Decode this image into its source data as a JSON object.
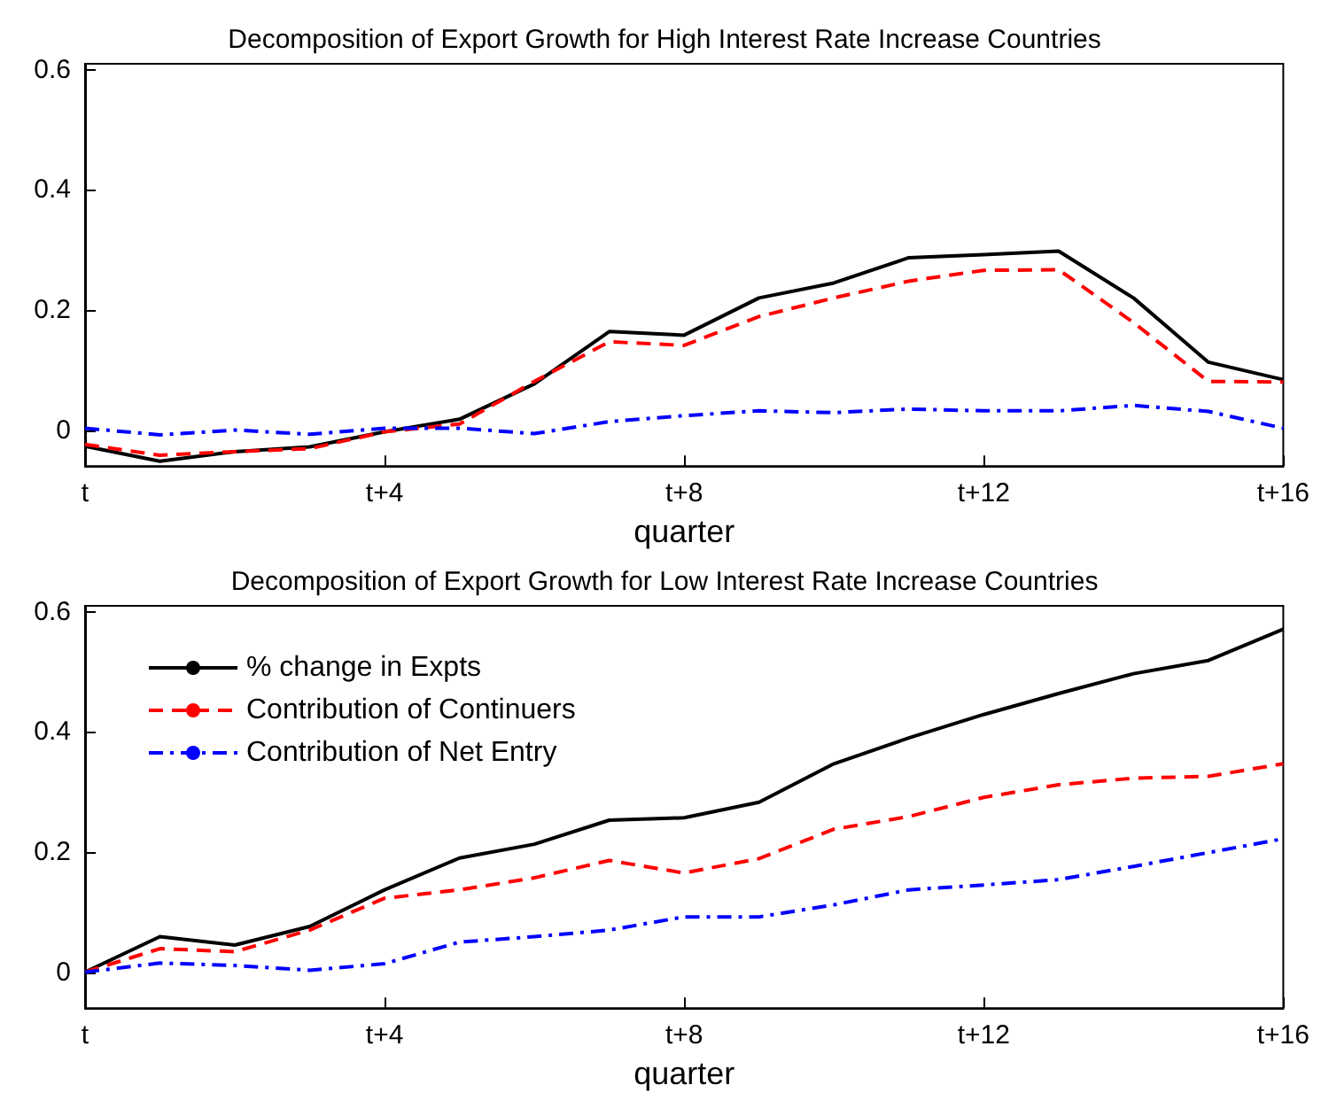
{
  "chart_data": [
    {
      "type": "line",
      "title": "Decomposition of Export Growth for High Interest Rate Increase Countries",
      "xlabel": "quarter",
      "categories": [
        "t",
        null,
        null,
        null,
        "t+4",
        null,
        null,
        null,
        "t+8",
        null,
        null,
        null,
        "t+12",
        null,
        null,
        null,
        "t+16"
      ],
      "ylim": [
        -0.06,
        0.61
      ],
      "yticks": [
        0,
        0.2,
        0.4,
        0.6
      ],
      "grid": false,
      "legend": false,
      "marker": "none",
      "series": [
        {
          "color": "#000000",
          "line_style": "solid",
          "values": [
            -0.027,
            -0.052,
            -0.036,
            -0.028,
            -0.003,
            0.018,
            0.077,
            0.164,
            0.158,
            0.22,
            0.245,
            0.287,
            0.292,
            0.298,
            0.22,
            0.113,
            0.084
          ]
        },
        {
          "color": "#ff0000",
          "line_style": "dashed",
          "values": [
            -0.024,
            -0.042,
            -0.036,
            -0.031,
            -0.003,
            0.01,
            0.081,
            0.147,
            0.141,
            0.189,
            0.22,
            0.248,
            0.266,
            0.267,
            0.179,
            0.081,
            0.08
          ]
        },
        {
          "color": "#0000ff",
          "line_style": "dashdot",
          "values": [
            0.003,
            -0.008,
            0,
            -0.007,
            0.003,
            0.003,
            -0.006,
            0.014,
            0.024,
            0.032,
            0.029,
            0.035,
            0.032,
            0.032,
            0.041,
            0.031,
            0.003
          ]
        }
      ]
    },
    {
      "type": "line",
      "title": "Decomposition of Export Growth for Low Interest Rate Increase Countries",
      "xlabel": "quarter",
      "categories": [
        "t",
        null,
        null,
        null,
        "t+4",
        null,
        null,
        null,
        "t+8",
        null,
        null,
        null,
        "t+12",
        null,
        null,
        null,
        "t+16"
      ],
      "ylim": [
        -0.06,
        0.61
      ],
      "yticks": [
        0,
        0.2,
        0.4,
        0.6
      ],
      "grid": false,
      "legend": "top left",
      "marker": "none",
      "series": [
        {
          "name": "% change in Expts",
          "color": "#000000",
          "line_style": "solid",
          "values": [
            0,
            0.059,
            0.045,
            0.076,
            0.137,
            0.19,
            0.213,
            0.253,
            0.257,
            0.283,
            0.347,
            0.39,
            0.429,
            0.464,
            0.497,
            0.519,
            0.571
          ]
        },
        {
          "name": "Contribution of Continuers",
          "color": "#ff0000",
          "line_style": "dashed",
          "values": [
            0,
            0.039,
            0.034,
            0.07,
            0.123,
            0.137,
            0.157,
            0.186,
            0.165,
            0.189,
            0.238,
            0.259,
            0.291,
            0.312,
            0.323,
            0.326,
            0.347
          ]
        },
        {
          "name": "Contribution of Net Entry",
          "color": "#0000ff",
          "line_style": "dashdot",
          "values": [
            0,
            0.015,
            0.011,
            0.003,
            0.014,
            0.05,
            0.059,
            0.07,
            0.092,
            0.092,
            0.112,
            0.137,
            0.145,
            0.154,
            0.176,
            0.199,
            0.222
          ]
        }
      ]
    }
  ]
}
